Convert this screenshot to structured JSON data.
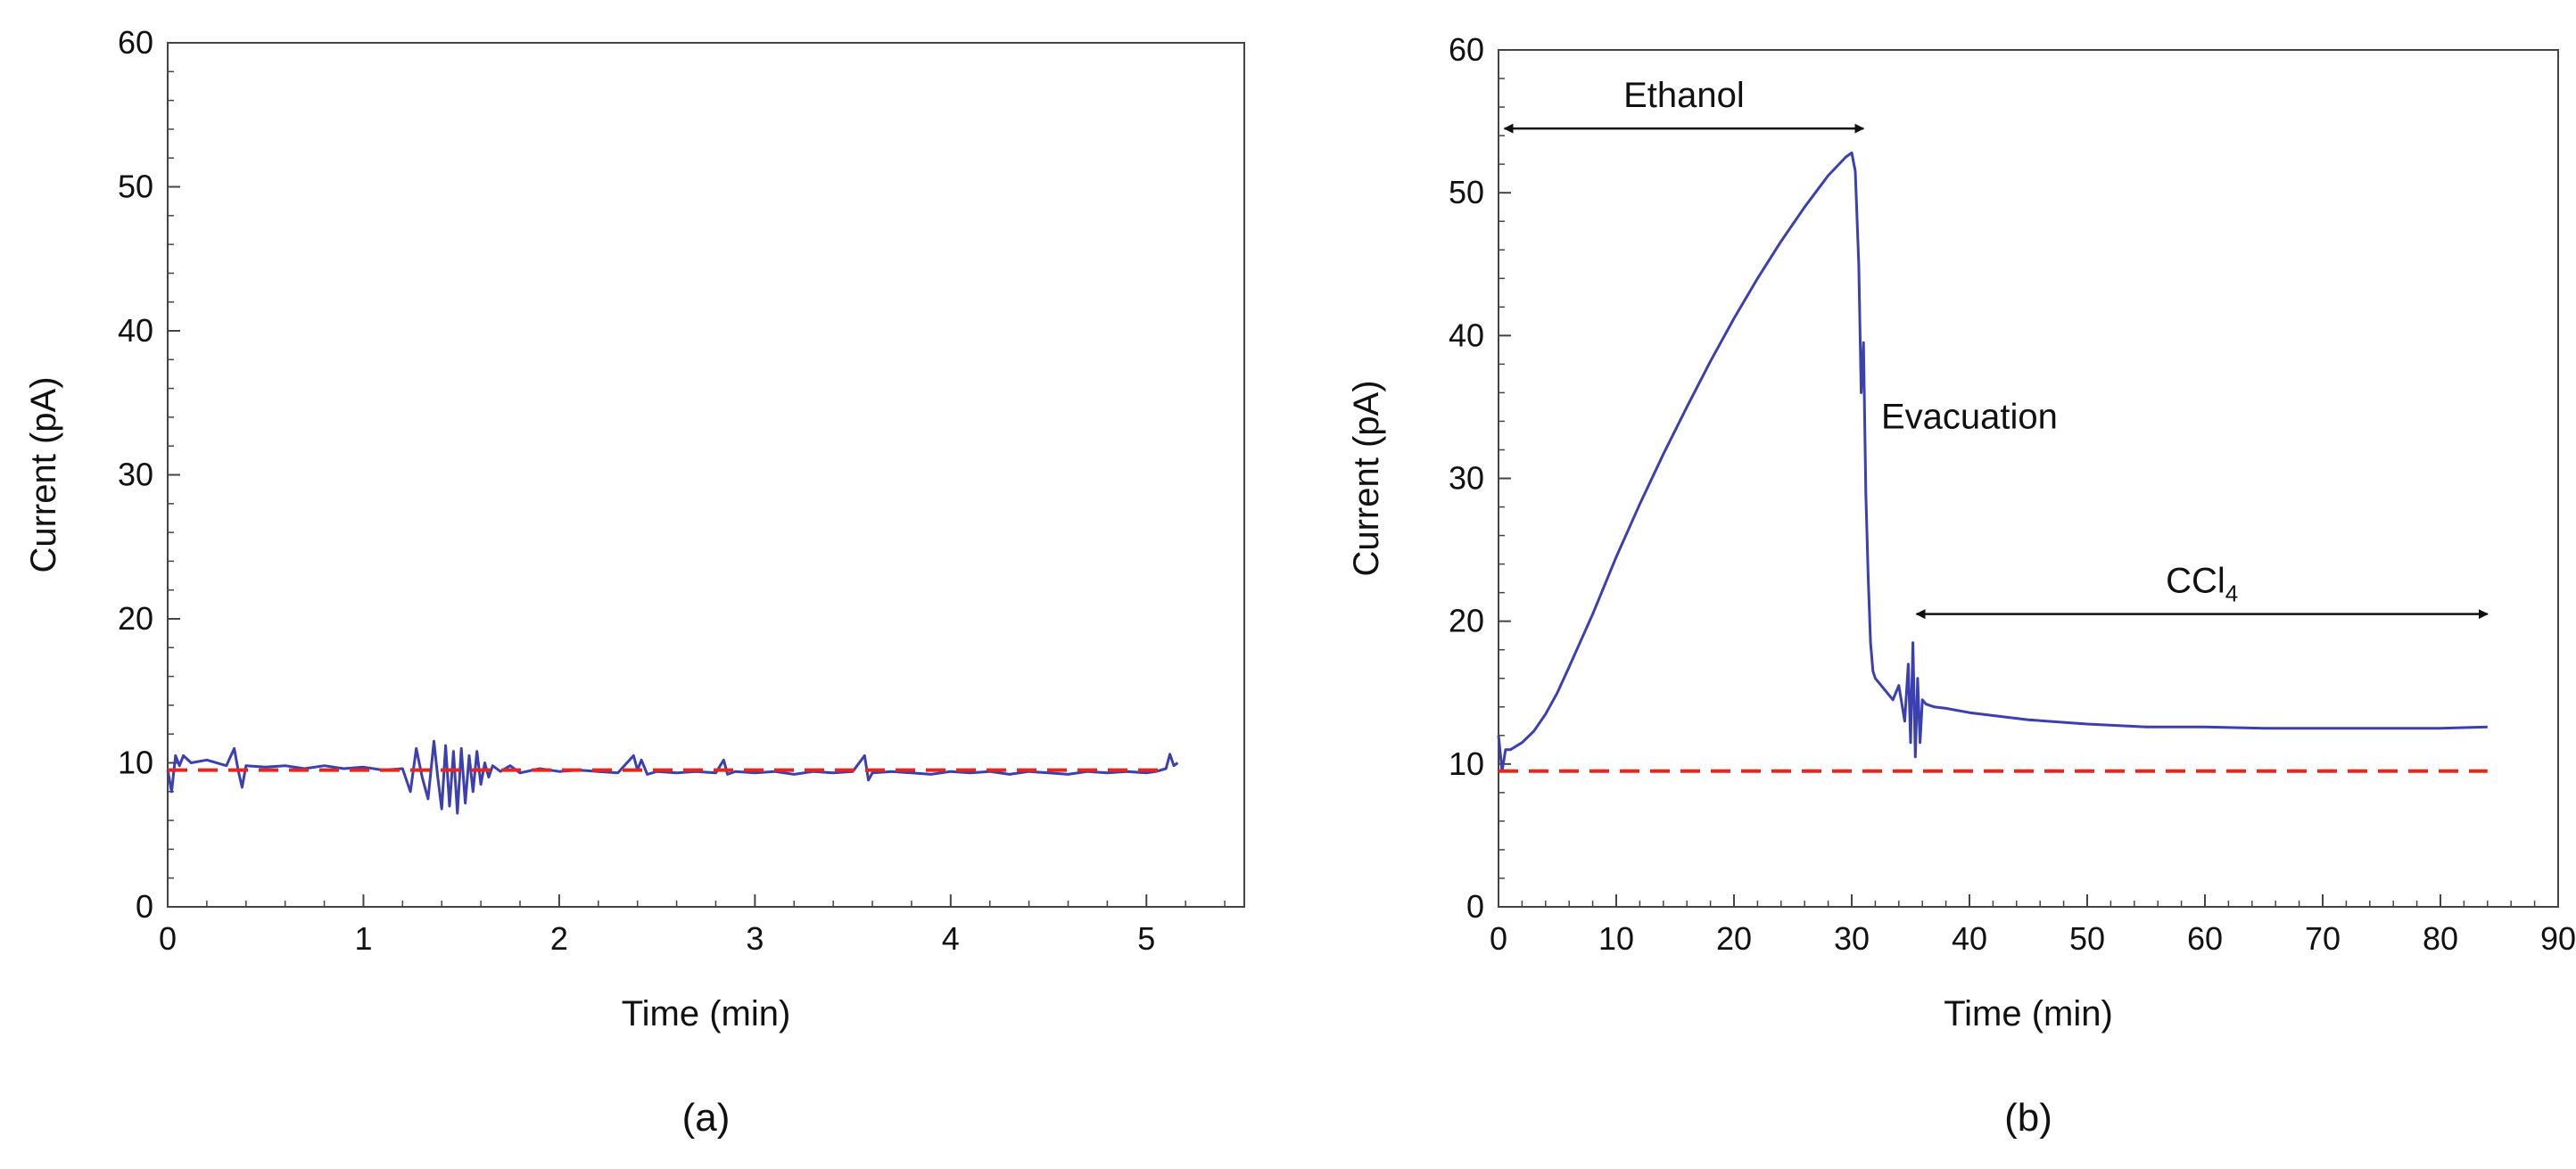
{
  "chart_data": [
    {
      "type": "line",
      "panel_label": "(a)",
      "xlabel": "Time  (min)",
      "ylabel": "Current  (pA)",
      "xlim": [
        0,
        5.5
      ],
      "ylim": [
        0,
        60
      ],
      "x_ticks": [
        "0",
        "1",
        "2",
        "3",
        "4",
        "5"
      ],
      "y_ticks": [
        "0",
        "10",
        "20",
        "30",
        "40",
        "50",
        "60"
      ],
      "grid": false,
      "series": [
        {
          "color": "#3b3fb0",
          "x": [
            0,
            0.02,
            0.04,
            0.06,
            0.08,
            0.12,
            0.2,
            0.3,
            0.34,
            0.36,
            0.38,
            0.4,
            0.5,
            0.6,
            0.7,
            0.8,
            0.9,
            1.0,
            1.1,
            1.2,
            1.24,
            1.27,
            1.3,
            1.33,
            1.36,
            1.38,
            1.4,
            1.42,
            1.44,
            1.46,
            1.48,
            1.5,
            1.52,
            1.54,
            1.56,
            1.58,
            1.6,
            1.62,
            1.64,
            1.66,
            1.7,
            1.75,
            1.8,
            1.9,
            2.0,
            2.1,
            2.2,
            2.3,
            2.38,
            2.4,
            2.42,
            2.45,
            2.5,
            2.6,
            2.7,
            2.8,
            2.84,
            2.86,
            2.9,
            3.0,
            3.1,
            3.2,
            3.3,
            3.4,
            3.5,
            3.56,
            3.58,
            3.6,
            3.7,
            3.8,
            3.9,
            4.0,
            4.1,
            4.2,
            4.3,
            4.4,
            4.5,
            4.6,
            4.7,
            4.8,
            4.9,
            5.0,
            5.05,
            5.1,
            5.12,
            5.14,
            5.16
          ],
          "y": [
            9.5,
            8.0,
            10.5,
            9.8,
            10.5,
            10.0,
            10.2,
            9.8,
            11.0,
            9.5,
            8.3,
            9.8,
            9.7,
            9.8,
            9.6,
            9.8,
            9.6,
            9.7,
            9.5,
            9.6,
            8.0,
            11.0,
            9.0,
            7.5,
            11.5,
            9.0,
            6.8,
            11.2,
            7.0,
            10.8,
            6.5,
            11.0,
            7.2,
            10.5,
            8.0,
            10.8,
            8.5,
            10.0,
            9.0,
            9.8,
            9.4,
            9.8,
            9.3,
            9.6,
            9.4,
            9.5,
            9.4,
            9.3,
            10.5,
            9.5,
            10.2,
            9.2,
            9.4,
            9.3,
            9.4,
            9.3,
            10.2,
            9.2,
            9.4,
            9.3,
            9.4,
            9.2,
            9.4,
            9.3,
            9.4,
            10.5,
            8.8,
            9.3,
            9.4,
            9.3,
            9.2,
            9.4,
            9.3,
            9.4,
            9.2,
            9.4,
            9.3,
            9.2,
            9.4,
            9.3,
            9.4,
            9.3,
            9.4,
            9.6,
            10.6,
            9.8,
            10.0
          ]
        },
        {
          "color": "#e8261e",
          "dashed": true,
          "x": [
            0,
            5.1
          ],
          "y": [
            9.5,
            9.5
          ]
        }
      ]
    },
    {
      "type": "line",
      "panel_label": "(b)",
      "xlabel": "Time  (min)",
      "ylabel": "Current  (pA)",
      "xlim": [
        0,
        90
      ],
      "ylim": [
        0,
        60
      ],
      "x_ticks": [
        "0",
        "10",
        "20",
        "30",
        "40",
        "50",
        "60",
        "70",
        "80",
        "90"
      ],
      "y_ticks": [
        "0",
        "10",
        "20",
        "30",
        "40",
        "50",
        "60"
      ],
      "grid": false,
      "annotations": [
        {
          "text": "Ethanol",
          "x1": 0.5,
          "x2": 31,
          "y": 54.5
        },
        {
          "text": "Evacuation",
          "x": 32.5,
          "y": 33.5
        },
        {
          "text": "CCl",
          "sub": "4",
          "x1": 35.5,
          "x2": 84,
          "y": 20.5
        }
      ],
      "series": [
        {
          "color": "#3b3fb0",
          "x": [
            0,
            0.3,
            0.6,
            1,
            2,
            3,
            4,
            5,
            6,
            8,
            10,
            12,
            14,
            16,
            18,
            20,
            22,
            24,
            26,
            28,
            29.5,
            30,
            30.3,
            30.6,
            30.8,
            31,
            31.2,
            31.4,
            31.6,
            31.8,
            32,
            32.5,
            33,
            33.5,
            34,
            34.5,
            34.8,
            35,
            35.2,
            35.4,
            35.6,
            35.8,
            36,
            36.3,
            37,
            38,
            40,
            45,
            50,
            55,
            60,
            65,
            70,
            75,
            80,
            84
          ],
          "y": [
            12.0,
            9.5,
            11.0,
            11.0,
            11.5,
            12.3,
            13.5,
            15.0,
            16.8,
            20.5,
            24.5,
            28.2,
            31.7,
            35.0,
            38.2,
            41.2,
            44.0,
            46.6,
            49.0,
            51.2,
            52.5,
            52.8,
            51.5,
            45.0,
            36.0,
            39.5,
            29.0,
            23.0,
            18.5,
            16.5,
            16.0,
            15.5,
            15.0,
            14.5,
            15.5,
            13.0,
            17.0,
            11.5,
            18.5,
            10.5,
            16.0,
            11.5,
            14.5,
            14.2,
            14.0,
            13.9,
            13.6,
            13.1,
            12.8,
            12.6,
            12.6,
            12.5,
            12.5,
            12.5,
            12.5,
            12.6
          ]
        },
        {
          "color": "#e8261e",
          "dashed": true,
          "x": [
            0,
            84
          ],
          "y": [
            9.5,
            9.5
          ]
        }
      ]
    }
  ]
}
